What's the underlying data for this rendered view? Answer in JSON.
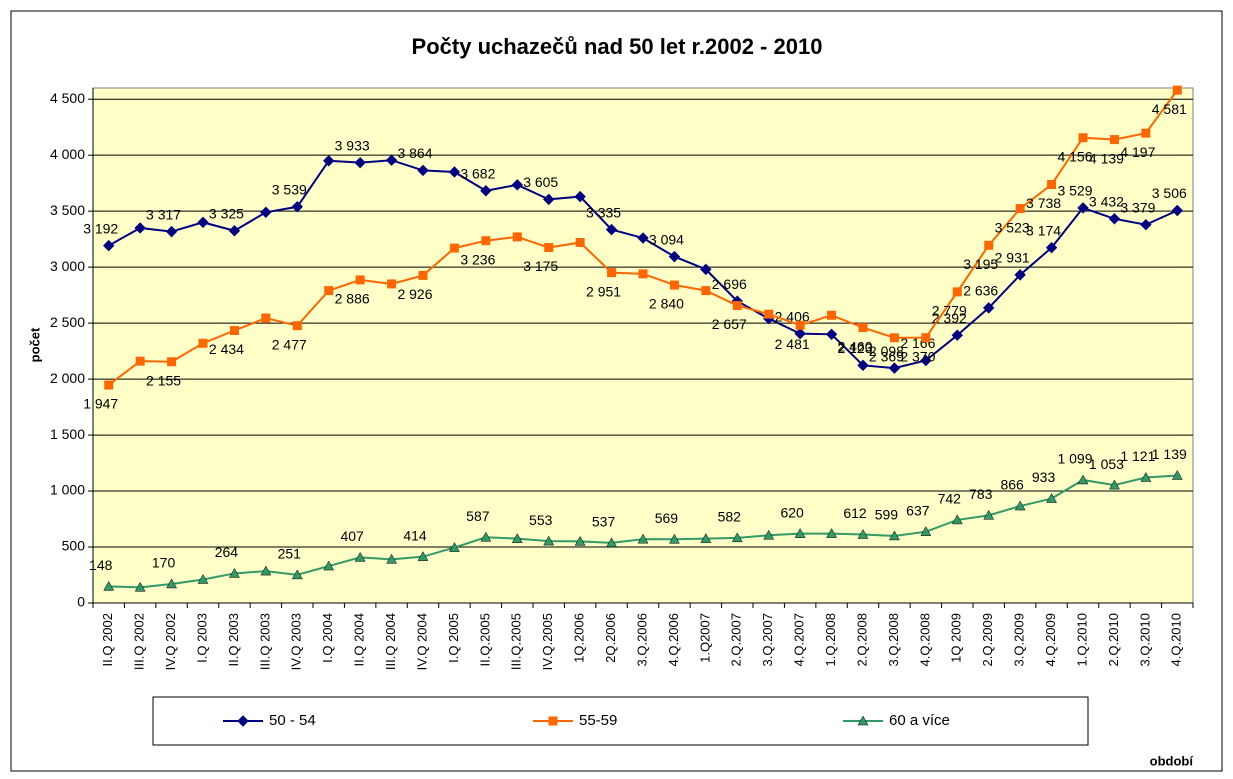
{
  "chart_data": {
    "type": "line",
    "title": "Počty uchazečů nad 50 let r.2002 - 2010",
    "y_label": "počet",
    "x_label": "období",
    "categories": [
      "II.Q 2002",
      "III.Q 2002",
      "IV.Q 2002",
      "I.Q 2003",
      "II.Q 2003",
      "III.Q 2003",
      "IV.Q 2003",
      "I.Q 2004",
      "II.Q 2004",
      "III.Q 2004",
      "IV.Q 2004",
      "I.Q 2005",
      "II.Q.2005",
      "III.Q.2005",
      "IV.Q.2005",
      "1Q.2006",
      "2Q.2006",
      "3.Q.2006",
      "4.Q.2006",
      "1.Q2007",
      "2.Q.2007",
      "3.Q.2007",
      "4.Q.2007",
      "1.Q.2008",
      "2.Q.2008",
      "3.Q.2008",
      "4.Q.2008",
      "1Q 2009",
      "2.Q.2009",
      "3.Q.2009",
      "4.Q.2009",
      "1.Q.2010",
      "2.Q.2010",
      "3.Q.2010",
      "4.Q.2010"
    ],
    "series": [
      {
        "name": "50 - 54",
        "color": "#000080",
        "marker": "diamond",
        "values": [
          3192,
          3350,
          3317,
          3400,
          3325,
          3490,
          3539,
          3950,
          3933,
          3955,
          3864,
          3850,
          3682,
          3735,
          3605,
          3630,
          3335,
          3260,
          3094,
          2980,
          2696,
          2540,
          2406,
          2400,
          2123,
          2098,
          2166,
          2392,
          2636,
          2931,
          3174,
          3529,
          3432,
          3379,
          3506
        ],
        "value_labels": [
          "3 192",
          null,
          "3 317",
          null,
          "3 325",
          null,
          "3 539",
          null,
          "3 933",
          null,
          "3 864",
          null,
          "3 682",
          null,
          "3 605",
          null,
          "3 335",
          null,
          "3 094",
          null,
          "2 696",
          null,
          "2 406",
          null,
          "2 123",
          "2 098",
          "2 166",
          "2 392",
          "2 636",
          "2 931",
          "3 174",
          "3 529",
          "3 432",
          "3 379",
          "3 506"
        ]
      },
      {
        "name": "55-59",
        "color": "#FF6600",
        "marker": "square",
        "values": [
          1947,
          2160,
          2155,
          2320,
          2434,
          2545,
          2477,
          2790,
          2886,
          2850,
          2926,
          3170,
          3236,
          3270,
          3175,
          3220,
          2951,
          2940,
          2840,
          2790,
          2657,
          2580,
          2481,
          2570,
          2460,
          2369,
          2370,
          2779,
          3195,
          3523,
          3738,
          4156,
          4139,
          4197,
          4581
        ],
        "value_labels": [
          "1 947",
          null,
          "2 155",
          null,
          "2 434",
          null,
          "2 477",
          null,
          "2 886",
          null,
          "2 926",
          null,
          "3 236",
          null,
          "3 175",
          null,
          "2 951",
          null,
          "2 840",
          null,
          "2 657",
          null,
          "2 481",
          null,
          "2 460",
          "2 369",
          "2 370",
          "2 779",
          "3 195",
          "3 523",
          "3 738",
          "4 156",
          "4 139",
          "4 197",
          "4 581"
        ]
      },
      {
        "name": "60 a více",
        "color": "#339966",
        "marker": "triangle",
        "values": [
          148,
          140,
          170,
          210,
          264,
          285,
          251,
          330,
          407,
          390,
          414,
          495,
          587,
          575,
          553,
          550,
          537,
          570,
          569,
          575,
          582,
          605,
          620,
          620,
          612,
          599,
          637,
          742,
          783,
          866,
          933,
          1099,
          1053,
          1121,
          1139
        ],
        "value_labels": [
          "148",
          null,
          "170",
          null,
          "264",
          null,
          "251",
          null,
          "407",
          null,
          "414",
          null,
          "587",
          null,
          "553",
          null,
          "537",
          null,
          "569",
          null,
          "582",
          null,
          "620",
          null,
          "612",
          "599",
          "637",
          "742",
          "783",
          "866",
          "933",
          "1 099",
          "1 053",
          "1 121",
          "1 139"
        ]
      }
    ],
    "ylim": [
      0,
      4600
    ],
    "yticks": [
      0,
      500,
      {
        "value": 1000,
        "label": "1 000"
      },
      {
        "value": 1500,
        "label": "1 500"
      },
      {
        "value": 2000,
        "label": "2 000"
      },
      {
        "value": 2500,
        "label": "2 500"
      },
      {
        "value": 3000,
        "label": "3 000"
      },
      {
        "value": 3500,
        "label": "3 500"
      },
      {
        "value": 4000,
        "label": "4 000"
      },
      {
        "value": 4500,
        "label": "4 500"
      }
    ],
    "grid": true,
    "legend": "bottom"
  }
}
